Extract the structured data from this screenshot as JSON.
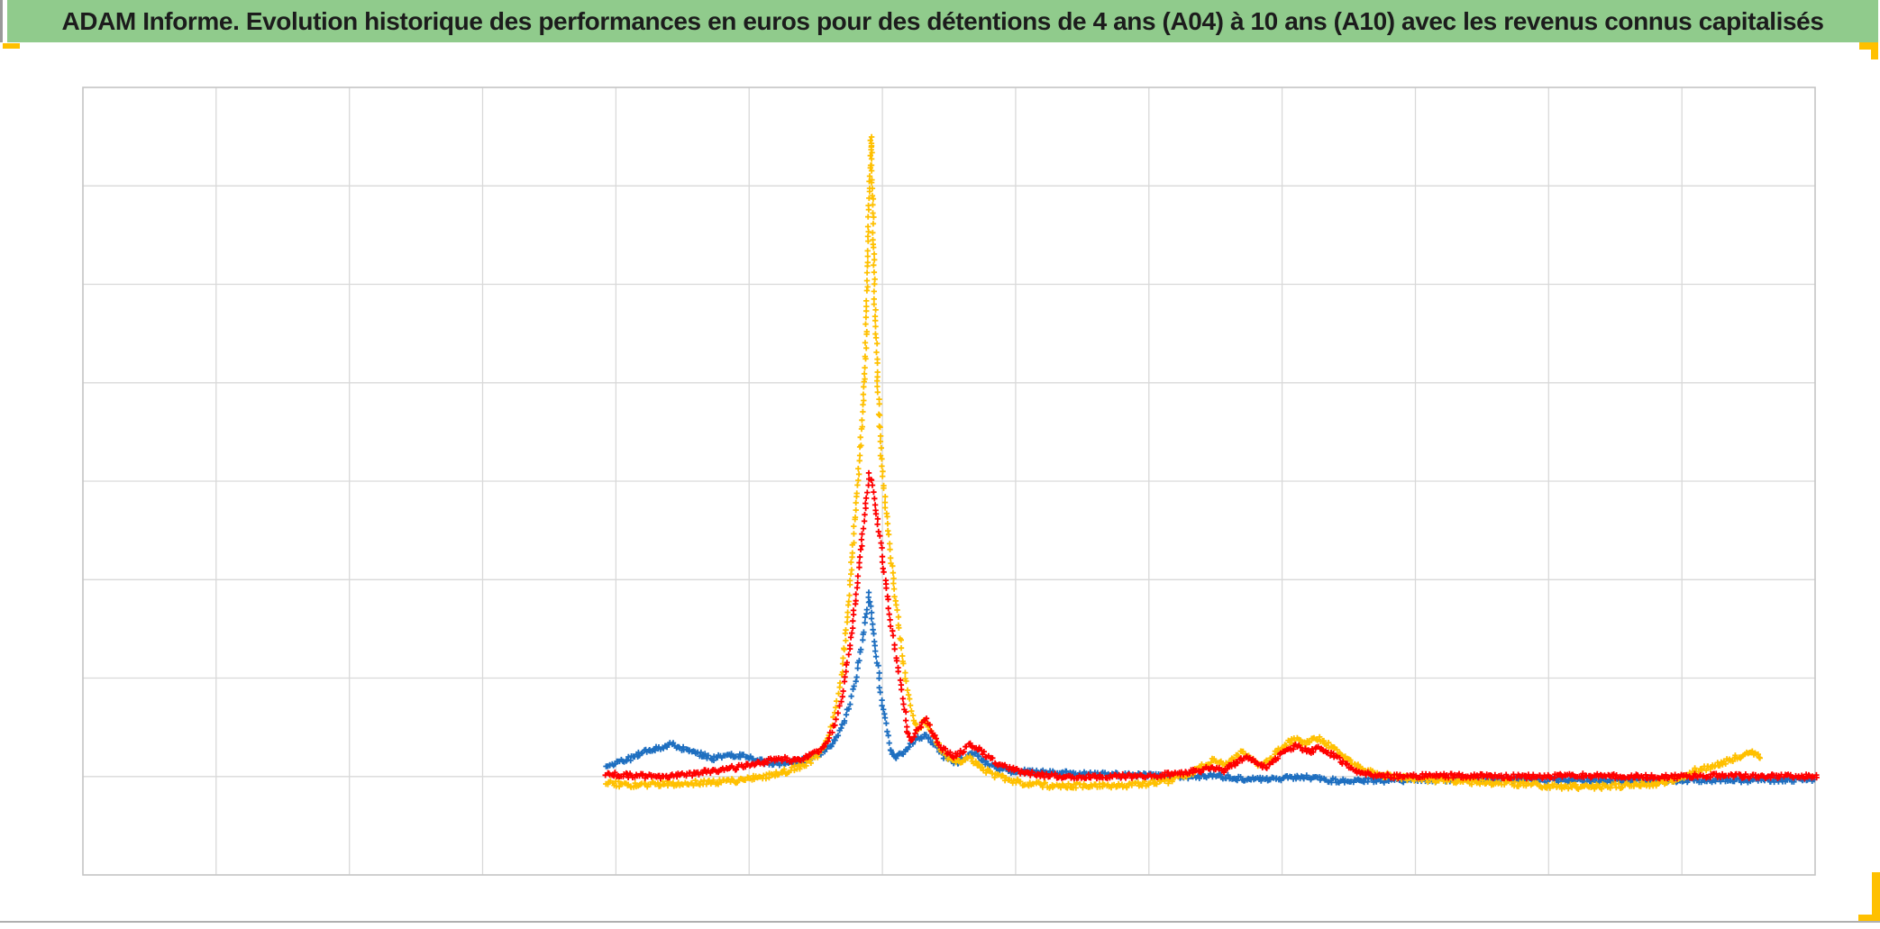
{
  "title_bar": {
    "text": "ADAM Informe. Evolution historique des performances en euros pour des détentions de 4 ans (A04) à 10 ans (A10) avec les revenus connus capitalisés",
    "background": "#90CB8C",
    "text_color": "#1c1c1c"
  },
  "accents": {
    "selection_gold": "#FFC000"
  },
  "frame": {
    "separator_color": "#AFAFAF",
    "window_edge_color": "#9A9A9A"
  },
  "chart_data": {
    "type": "scatter",
    "title": "ADAM Informe. Evolution historique des performances en euros pour des détentions de 4 ans (A04) à 10 ans (A10) avec les revenus connus capitalisés",
    "marker_style": "plus",
    "legend": "none",
    "axis_tick_labels": "none",
    "grid": {
      "columns": 13,
      "rows": 8,
      "gridline_color": "#D9D9D9",
      "border_color": "#C6C6C6",
      "plot_background": "#FFFFFF"
    },
    "note_units": "axes are unlabeled in source; series anchors are given as fractions of plot area: x = 0 left .. 1 right, y = 0 bottom border .. 1 top border",
    "series": [
      {
        "name": "series-blue",
        "color": "#1E6FC0",
        "jitter": 2.5,
        "anchors": [
          [
            0.302,
            0.138
          ],
          [
            0.316,
            0.148
          ],
          [
            0.324,
            0.156
          ],
          [
            0.332,
            0.161
          ],
          [
            0.34,
            0.166
          ],
          [
            0.348,
            0.159
          ],
          [
            0.355,
            0.154
          ],
          [
            0.363,
            0.148
          ],
          [
            0.374,
            0.152
          ],
          [
            0.384,
            0.15
          ],
          [
            0.394,
            0.143
          ],
          [
            0.405,
            0.141
          ],
          [
            0.413,
            0.143
          ],
          [
            0.42,
            0.15
          ],
          [
            0.427,
            0.156
          ],
          [
            0.432,
            0.166
          ],
          [
            0.436,
            0.178
          ],
          [
            0.44,
            0.196
          ],
          [
            0.443,
            0.219
          ],
          [
            0.446,
            0.247
          ],
          [
            0.449,
            0.281
          ],
          [
            0.451,
            0.31
          ],
          [
            0.453,
            0.339
          ],
          [
            0.454,
            0.356
          ],
          [
            0.455,
            0.333
          ],
          [
            0.457,
            0.299
          ],
          [
            0.459,
            0.264
          ],
          [
            0.461,
            0.224
          ],
          [
            0.464,
            0.19
          ],
          [
            0.466,
            0.161
          ],
          [
            0.469,
            0.148
          ],
          [
            0.472,
            0.152
          ],
          [
            0.477,
            0.164
          ],
          [
            0.482,
            0.173
          ],
          [
            0.487,
            0.178
          ],
          [
            0.492,
            0.164
          ],
          [
            0.497,
            0.15
          ],
          [
            0.504,
            0.141
          ],
          [
            0.51,
            0.15
          ],
          [
            0.515,
            0.156
          ],
          [
            0.52,
            0.144
          ],
          [
            0.527,
            0.136
          ],
          [
            0.535,
            0.132
          ],
          [
            0.545,
            0.131
          ],
          [
            0.561,
            0.13
          ],
          [
            0.576,
            0.129
          ],
          [
            0.597,
            0.127
          ],
          [
            0.618,
            0.126
          ],
          [
            0.639,
            0.125
          ],
          [
            0.654,
            0.126
          ],
          [
            0.67,
            0.122
          ],
          [
            0.691,
            0.122
          ],
          [
            0.701,
            0.125
          ],
          [
            0.712,
            0.122
          ],
          [
            0.722,
            0.12
          ],
          [
            0.753,
            0.12
          ],
          [
            0.785,
            0.121
          ],
          [
            0.837,
            0.121
          ],
          [
            0.889,
            0.12
          ],
          [
            0.941,
            0.12
          ],
          [
            0.993,
            0.121
          ],
          [
            1.0,
            0.122
          ]
        ]
      },
      {
        "name": "series-gold",
        "color": "#FFC000",
        "jitter": 3,
        "anchors": [
          [
            0.302,
            0.117
          ],
          [
            0.316,
            0.114
          ],
          [
            0.337,
            0.116
          ],
          [
            0.358,
            0.117
          ],
          [
            0.379,
            0.12
          ],
          [
            0.394,
            0.125
          ],
          [
            0.407,
            0.132
          ],
          [
            0.418,
            0.141
          ],
          [
            0.425,
            0.152
          ],
          [
            0.43,
            0.173
          ],
          [
            0.434,
            0.207
          ],
          [
            0.438,
            0.253
          ],
          [
            0.441,
            0.321
          ],
          [
            0.444,
            0.402
          ],
          [
            0.447,
            0.487
          ],
          [
            0.45,
            0.579
          ],
          [
            0.452,
            0.676
          ],
          [
            0.453,
            0.779
          ],
          [
            0.454,
            0.882
          ],
          [
            0.455,
            0.939
          ],
          [
            0.456,
            0.848
          ],
          [
            0.457,
            0.733
          ],
          [
            0.459,
            0.619
          ],
          [
            0.461,
            0.527
          ],
          [
            0.464,
            0.453
          ],
          [
            0.467,
            0.39
          ],
          [
            0.47,
            0.333
          ],
          [
            0.473,
            0.281
          ],
          [
            0.476,
            0.236
          ],
          [
            0.479,
            0.201
          ],
          [
            0.482,
            0.186
          ],
          [
            0.486,
            0.196
          ],
          [
            0.49,
            0.182
          ],
          [
            0.495,
            0.161
          ],
          [
            0.5,
            0.148
          ],
          [
            0.506,
            0.144
          ],
          [
            0.511,
            0.15
          ],
          [
            0.516,
            0.141
          ],
          [
            0.521,
            0.133
          ],
          [
            0.528,
            0.125
          ],
          [
            0.535,
            0.12
          ],
          [
            0.545,
            0.116
          ],
          [
            0.561,
            0.113
          ],
          [
            0.576,
            0.114
          ],
          [
            0.597,
            0.113
          ],
          [
            0.613,
            0.116
          ],
          [
            0.628,
            0.12
          ],
          [
            0.639,
            0.129
          ],
          [
            0.647,
            0.138
          ],
          [
            0.653,
            0.146
          ],
          [
            0.66,
            0.141
          ],
          [
            0.665,
            0.15
          ],
          [
            0.67,
            0.158
          ],
          [
            0.675,
            0.148
          ],
          [
            0.68,
            0.138
          ],
          [
            0.687,
            0.15
          ],
          [
            0.693,
            0.164
          ],
          [
            0.699,
            0.173
          ],
          [
            0.706,
            0.166
          ],
          [
            0.711,
            0.175
          ],
          [
            0.717,
            0.168
          ],
          [
            0.723,
            0.159
          ],
          [
            0.729,
            0.148
          ],
          [
            0.737,
            0.136
          ],
          [
            0.745,
            0.129
          ],
          [
            0.756,
            0.125
          ],
          [
            0.769,
            0.122
          ],
          [
            0.785,
            0.12
          ],
          [
            0.805,
            0.118
          ],
          [
            0.826,
            0.116
          ],
          [
            0.847,
            0.113
          ],
          [
            0.868,
            0.112
          ],
          [
            0.889,
            0.113
          ],
          [
            0.907,
            0.116
          ],
          [
            0.92,
            0.122
          ],
          [
            0.93,
            0.132
          ],
          [
            0.941,
            0.138
          ],
          [
            0.949,
            0.144
          ],
          [
            0.956,
            0.15
          ],
          [
            0.963,
            0.156
          ],
          [
            0.967,
            0.151
          ],
          [
            0.969,
            0.148
          ]
        ]
      },
      {
        "name": "series-red",
        "color": "#FF0000",
        "jitter": 2.5,
        "anchors": [
          [
            0.302,
            0.129
          ],
          [
            0.316,
            0.126
          ],
          [
            0.332,
            0.125
          ],
          [
            0.348,
            0.127
          ],
          [
            0.363,
            0.132
          ],
          [
            0.379,
            0.137
          ],
          [
            0.392,
            0.143
          ],
          [
            0.402,
            0.148
          ],
          [
            0.41,
            0.146
          ],
          [
            0.418,
            0.149
          ],
          [
            0.425,
            0.157
          ],
          [
            0.43,
            0.17
          ],
          [
            0.435,
            0.196
          ],
          [
            0.439,
            0.236
          ],
          [
            0.443,
            0.293
          ],
          [
            0.446,
            0.35
          ],
          [
            0.449,
            0.413
          ],
          [
            0.452,
            0.47
          ],
          [
            0.454,
            0.51
          ],
          [
            0.456,
            0.493
          ],
          [
            0.458,
            0.459
          ],
          [
            0.461,
            0.413
          ],
          [
            0.464,
            0.362
          ],
          [
            0.467,
            0.31
          ],
          [
            0.47,
            0.27
          ],
          [
            0.474,
            0.219
          ],
          [
            0.476,
            0.182
          ],
          [
            0.479,
            0.17
          ],
          [
            0.483,
            0.189
          ],
          [
            0.487,
            0.196
          ],
          [
            0.491,
            0.178
          ],
          [
            0.496,
            0.161
          ],
          [
            0.502,
            0.15
          ],
          [
            0.507,
            0.156
          ],
          [
            0.512,
            0.166
          ],
          [
            0.517,
            0.161
          ],
          [
            0.522,
            0.15
          ],
          [
            0.529,
            0.141
          ],
          [
            0.536,
            0.134
          ],
          [
            0.545,
            0.129
          ],
          [
            0.558,
            0.126
          ],
          [
            0.576,
            0.125
          ],
          [
            0.597,
            0.125
          ],
          [
            0.618,
            0.126
          ],
          [
            0.631,
            0.129
          ],
          [
            0.644,
            0.132
          ],
          [
            0.652,
            0.137
          ],
          [
            0.659,
            0.133
          ],
          [
            0.666,
            0.143
          ],
          [
            0.672,
            0.151
          ],
          [
            0.677,
            0.143
          ],
          [
            0.683,
            0.136
          ],
          [
            0.689,
            0.148
          ],
          [
            0.695,
            0.159
          ],
          [
            0.701,
            0.164
          ],
          [
            0.708,
            0.156
          ],
          [
            0.714,
            0.161
          ],
          [
            0.72,
            0.154
          ],
          [
            0.727,
            0.144
          ],
          [
            0.735,
            0.133
          ],
          [
            0.744,
            0.127
          ],
          [
            0.759,
            0.125
          ],
          [
            0.785,
            0.126
          ],
          [
            0.811,
            0.125
          ],
          [
            0.837,
            0.125
          ],
          [
            0.863,
            0.126
          ],
          [
            0.889,
            0.125
          ],
          [
            0.915,
            0.125
          ],
          [
            0.941,
            0.126
          ],
          [
            0.967,
            0.125
          ],
          [
            0.993,
            0.125
          ],
          [
            1.002,
            0.125
          ]
        ]
      }
    ]
  }
}
